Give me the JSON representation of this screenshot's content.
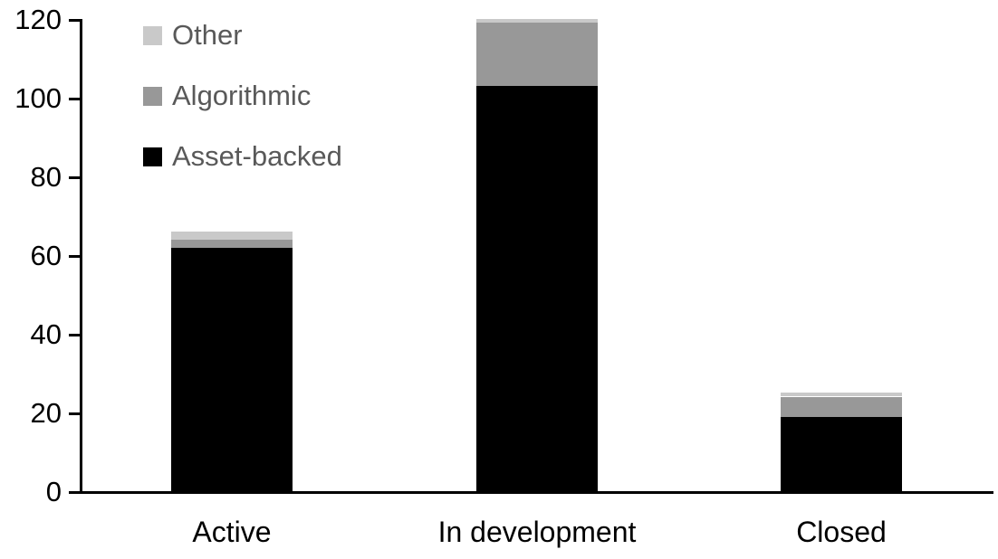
{
  "chart_data": {
    "type": "bar",
    "stacked": true,
    "title": "",
    "xlabel": "",
    "ylabel": "",
    "categories": [
      "Active",
      "In development",
      "Closed"
    ],
    "series": [
      {
        "name": "Asset-backed",
        "color": "#000000",
        "values": [
          62,
          103,
          19
        ]
      },
      {
        "name": "Algorithmic",
        "color": "#989898",
        "values": [
          2,
          16,
          5
        ]
      },
      {
        "name": "Other",
        "color": "#c9c9c9",
        "values": [
          2,
          1,
          1
        ]
      }
    ],
    "totals": [
      66,
      120,
      25
    ],
    "ylim": [
      0,
      120
    ],
    "yticks": [
      0,
      20,
      40,
      60,
      80,
      100,
      120
    ],
    "grid": false,
    "legend": {
      "position": "top-left",
      "order": [
        "Other",
        "Algorithmic",
        "Asset-backed"
      ]
    },
    "colors": {
      "axis": "#000000",
      "axis_text": "#000000",
      "legend_text": "#595959",
      "background": "#ffffff"
    }
  }
}
